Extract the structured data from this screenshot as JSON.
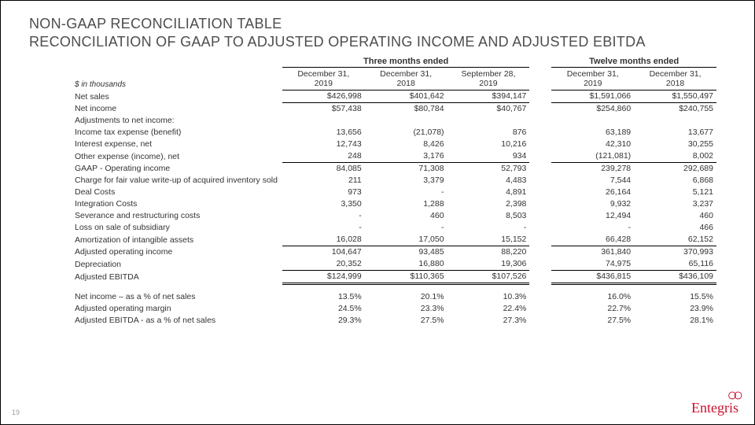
{
  "title_line1": "NON-GAAP RECONCILIATION TABLE",
  "title_line2": "RECONCILIATION OF GAAP TO ADJUSTED OPERATING INCOME AND ADJUSTED EBITDA",
  "units_note": "$ in thousands",
  "period_groups": [
    {
      "label": "Three months ended",
      "cols": [
        "December 31, 2019",
        "December 31, 2018",
        "September 28, 2019"
      ]
    },
    {
      "label": "Twelve months ended",
      "cols": [
        "December 31, 2019",
        "December 31, 2018"
      ]
    }
  ],
  "rows": [
    {
      "label": "Net sales",
      "v": [
        "$426,998",
        "$401,642",
        "$394,147",
        "$1,591,066",
        "$1,550,497"
      ],
      "style": "bb"
    },
    {
      "label": "Net income",
      "v": [
        "$57,438",
        "$80,784",
        "$40,767",
        "$254,860",
        "$240,755"
      ]
    },
    {
      "label": "Adjustments to net income:",
      "v": [
        "",
        "",
        "",
        "",
        ""
      ]
    },
    {
      "label": "Income tax expense (benefit)",
      "v": [
        "13,656",
        "(21,078)",
        "876",
        "63,189",
        "13,677"
      ]
    },
    {
      "label": "Interest expense, net",
      "v": [
        "12,743",
        "8,426",
        "10,216",
        "42,310",
        "30,255"
      ]
    },
    {
      "label": "Other expense (income), net",
      "v": [
        "248",
        "3,176",
        "934",
        "(121,081)",
        "8,002"
      ],
      "style": "bb"
    },
    {
      "label": "GAAP - Operating income",
      "v": [
        "84,085",
        "71,308",
        "52,793",
        "239,278",
        "292,689"
      ]
    },
    {
      "label": "Charge for fair value write-up of acquired inventory sold",
      "wrap": true,
      "v": [
        "211",
        "3,379",
        "4,483",
        "7,544",
        "6,868"
      ]
    },
    {
      "label": "Deal Costs",
      "v": [
        "973",
        "-",
        "4,891",
        "26,164",
        "5,121"
      ]
    },
    {
      "label": "Integration Costs",
      "v": [
        "3,350",
        "1,288",
        "2,398",
        "9,932",
        "3,237"
      ]
    },
    {
      "label": "Severance and restructuring costs",
      "v": [
        "-",
        "460",
        "8,503",
        "12,494",
        "460"
      ]
    },
    {
      "label": "Loss on sale of subsidiary",
      "v": [
        "-",
        "-",
        "-",
        "-",
        "466"
      ]
    },
    {
      "label": "Amortization of intangible assets",
      "v": [
        "16,028",
        "17,050",
        "15,152",
        "66,428",
        "62,152"
      ],
      "style": "bb"
    },
    {
      "label": "Adjusted operating income",
      "v": [
        "104,647",
        "93,485",
        "88,220",
        "361,840",
        "370,993"
      ]
    },
    {
      "label": "Depreciation",
      "v": [
        "20,352",
        "16,880",
        "19,306",
        "74,975",
        "65,116"
      ],
      "style": "bb"
    },
    {
      "label": "Adjusted EBITDA",
      "v": [
        "$124,999",
        "$110,365",
        "$107,526",
        "$436,815",
        "$436,109"
      ],
      "style": "bbd"
    },
    {
      "spacer": true
    },
    {
      "label": "Net income – as a % of net sales",
      "v": [
        "13.5%",
        "20.1%",
        "10.3%",
        "16.0%",
        "15.5%"
      ]
    },
    {
      "label": "Adjusted operating margin",
      "v": [
        "24.5%",
        "23.3%",
        "22.4%",
        "22.7%",
        "23.9%"
      ]
    },
    {
      "label": "Adjusted EBITDA - as a % of net sales",
      "v": [
        "29.3%",
        "27.5%",
        "27.3%",
        "27.5%",
        "28.1%"
      ]
    }
  ],
  "page_number": "19",
  "logo_text": "Entegris"
}
